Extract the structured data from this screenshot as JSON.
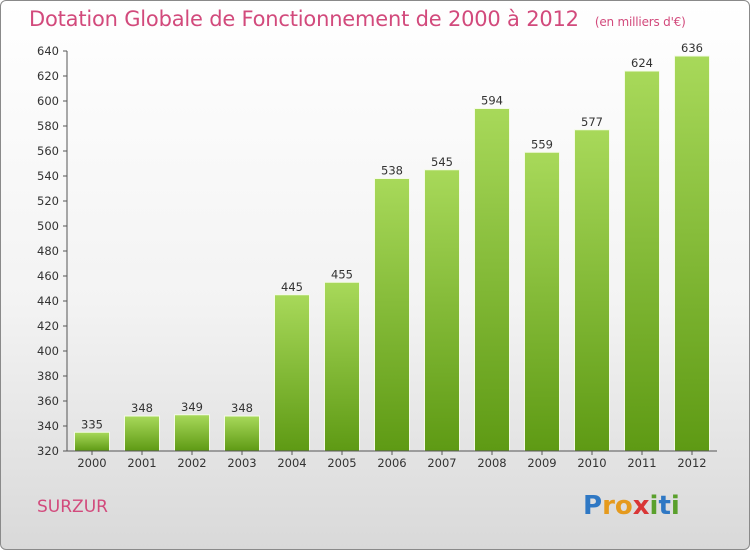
{
  "title": "Dotation Globale de Fonctionnement de 2000 à 2012",
  "subtitle": "(en milliers d'€)",
  "commune": "SURZUR",
  "logo": {
    "letters": [
      "P",
      "r",
      "o",
      "x",
      "i",
      "t",
      "i"
    ]
  },
  "colors": {
    "title": "#d24a7c",
    "bar_light": "#a8d95a",
    "bar_dark": "#5e9a14",
    "axis": "#555555"
  },
  "chart_data": {
    "type": "bar",
    "title": "Dotation Globale de Fonctionnement de 2000 à 2012",
    "subtitle": "(en milliers d'€)",
    "categories": [
      "2000",
      "2001",
      "2002",
      "2003",
      "2004",
      "2005",
      "2006",
      "2007",
      "2008",
      "2009",
      "2010",
      "2011",
      "2012"
    ],
    "values": [
      335,
      348,
      349,
      348,
      445,
      455,
      538,
      545,
      594,
      559,
      577,
      624,
      636
    ],
    "ylim": [
      320,
      640
    ],
    "yticks": [
      320,
      340,
      360,
      380,
      400,
      420,
      440,
      460,
      480,
      500,
      520,
      540,
      560,
      580,
      600,
      620,
      640
    ],
    "xlabel": "",
    "ylabel": "",
    "grid": false,
    "data_labels": true
  }
}
